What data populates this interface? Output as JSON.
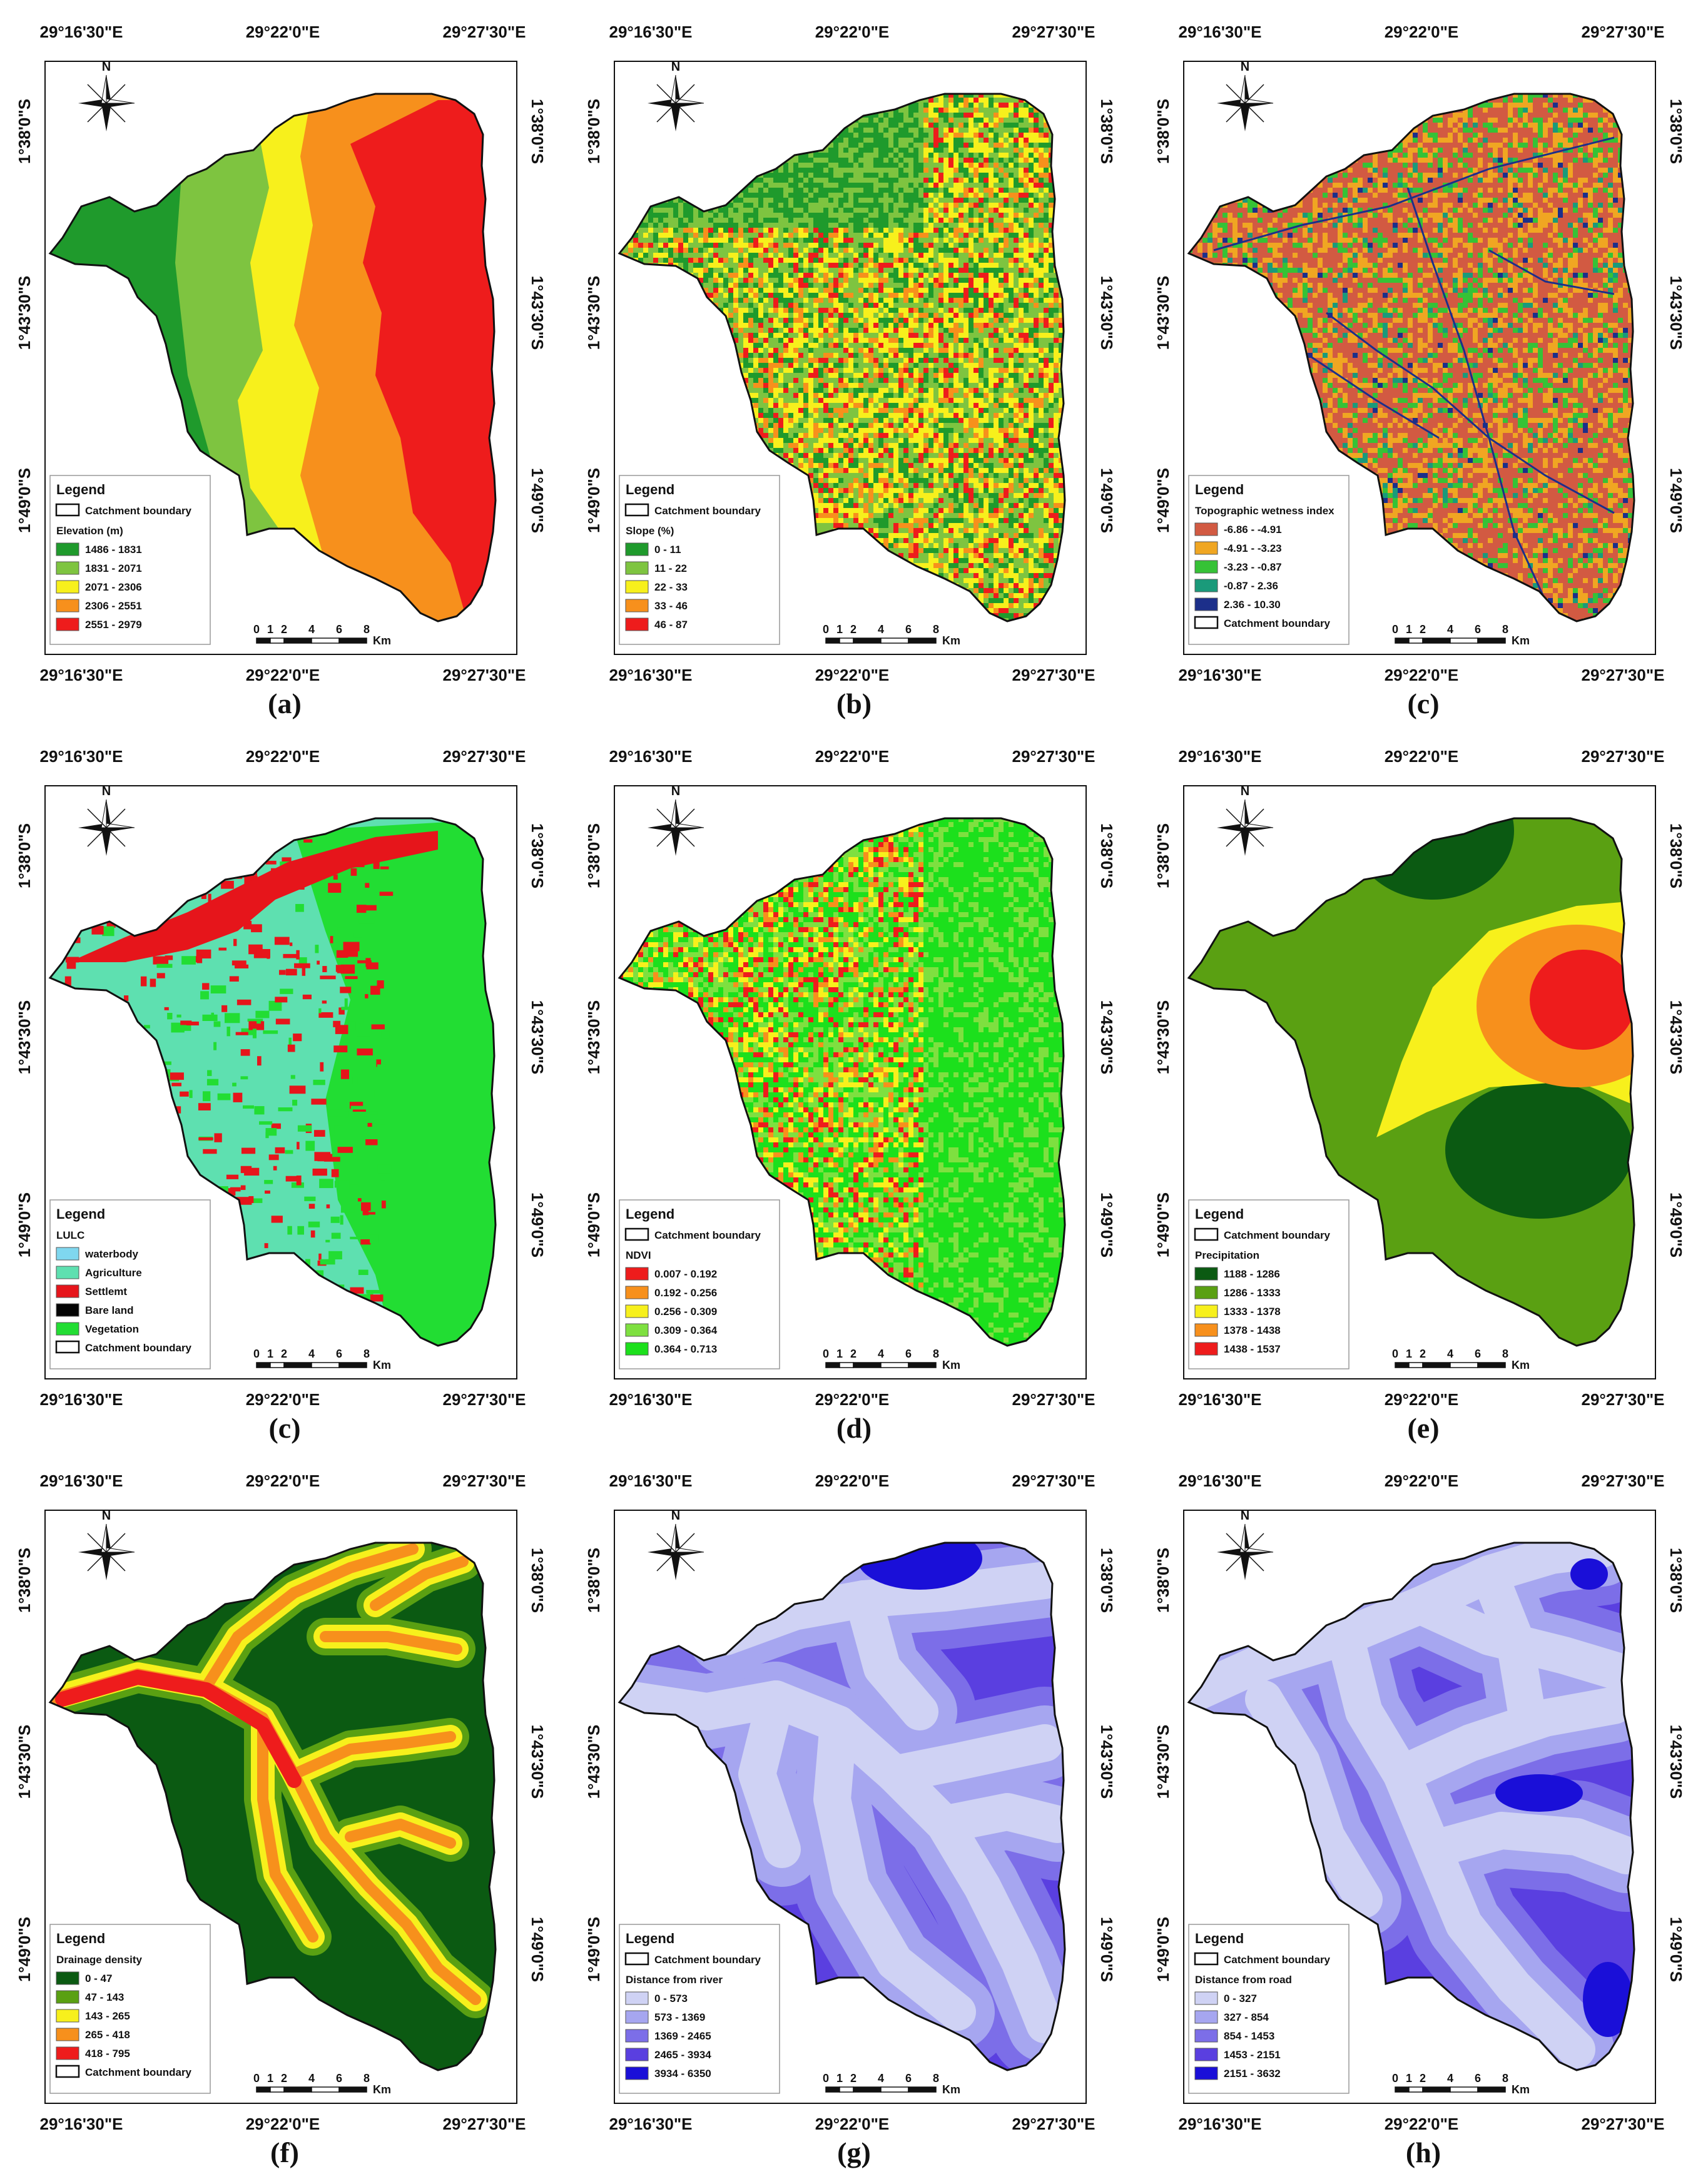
{
  "axis": {
    "top": [
      "29°16'30\"E",
      "29°22'0\"E",
      "29°27'30\"E"
    ],
    "bottom": [
      "29°16'30\"E",
      "29°22'0\"E",
      "29°27'30\"E"
    ],
    "left": [
      "1°38'0\"S",
      "1°43'30\"S",
      "1°49'0\"S"
    ],
    "right": [
      "1°38'0\"S",
      "1°43'30\"S",
      "1°49'0\"S"
    ]
  },
  "north_label": "N",
  "scale_bar": {
    "ticks": [
      "0",
      "1",
      "2",
      "4",
      "6",
      "8"
    ],
    "unit": "Km"
  },
  "panels": [
    {
      "label": "(a)",
      "style": "elevation",
      "legend": {
        "title": "Legend",
        "boundary_label": "Catchment boundary",
        "boundary_position": "top",
        "subtitle": "Elevation (m)",
        "classes": [
          {
            "label": "1486 - 1831",
            "color": "#1f9a2c"
          },
          {
            "label": "1831 - 2071",
            "color": "#7ec440"
          },
          {
            "label": "2071 - 2306",
            "color": "#f7f01c"
          },
          {
            "label": "2306 - 2551",
            "color": "#f7901c"
          },
          {
            "label": "2551 - 2979",
            "color": "#ee1c1c"
          }
        ]
      }
    },
    {
      "label": "(b)",
      "style": "speckle",
      "legend": {
        "title": "Legend",
        "boundary_label": "Catchment boundary",
        "boundary_position": "top",
        "subtitle": "Slope (%)",
        "classes": [
          {
            "label": "0 - 11",
            "color": "#1f9a2c"
          },
          {
            "label": "11 - 22",
            "color": "#7ec440"
          },
          {
            "label": "22 - 33",
            "color": "#f7f01c"
          },
          {
            "label": "33 - 46",
            "color": "#f7901c"
          },
          {
            "label": "46 - 87",
            "color": "#ee1c1c"
          }
        ]
      }
    },
    {
      "label": "(c)",
      "style": "speckle",
      "legend": {
        "title": "Legend",
        "boundary_label": "Catchment boundary",
        "boundary_position": "bottom",
        "subtitle": "Topographic wetness index",
        "classes": [
          {
            "label": "-6.86 - -4.91",
            "color": "#d25a42"
          },
          {
            "label": "-4.91 - -3.23",
            "color": "#f0a622"
          },
          {
            "label": "-3.23 - -0.87",
            "color": "#36c236"
          },
          {
            "label": "-0.87 - 2.36",
            "color": "#1a9a7a"
          },
          {
            "label": "2.36 - 10.30",
            "color": "#1c2f8a"
          }
        ]
      }
    },
    {
      "label": "(c)",
      "style": "lulc",
      "legend": {
        "title": "Legend",
        "boundary_label": "Catchment boundary",
        "boundary_position": "bottom",
        "subtitle": "LULC",
        "classes": [
          {
            "label": "waterbody",
            "color": "#7fd7ef"
          },
          {
            "label": "Agriculture",
            "color": "#5ee0b0"
          },
          {
            "label": "Settlemt",
            "color": "#e6151b"
          },
          {
            "label": "Bare land",
            "color": "#050505"
          },
          {
            "label": "Vegetation",
            "color": "#22dd33"
          }
        ]
      }
    },
    {
      "label": "(d)",
      "style": "speckle",
      "legend": {
        "title": "Legend",
        "boundary_label": "Catchment boundary",
        "boundary_position": "top",
        "subtitle": "NDVI",
        "classes": [
          {
            "label": "0.007 - 0.192",
            "color": "#ee1c1c"
          },
          {
            "label": "0.192 - 0.256",
            "color": "#f7901c"
          },
          {
            "label": "0.256 - 0.309",
            "color": "#f7f01c"
          },
          {
            "label": "0.309 - 0.364",
            "color": "#7ee040"
          },
          {
            "label": "0.364 - 0.713",
            "color": "#1ce01c"
          }
        ]
      }
    },
    {
      "label": "(e)",
      "style": "precip",
      "legend": {
        "title": "Legend",
        "boundary_label": "Catchment boundary",
        "boundary_position": "top",
        "subtitle": "Precipitation",
        "classes": [
          {
            "label": "1188 - 1286",
            "color": "#0b5a12"
          },
          {
            "label": "1286 - 1333",
            "color": "#5aa012"
          },
          {
            "label": "1333 - 1378",
            "color": "#f7f01c"
          },
          {
            "label": "1378 - 1438",
            "color": "#f7901c"
          },
          {
            "label": "1438 - 1537",
            "color": "#ee1c1c"
          }
        ]
      }
    },
    {
      "label": "(f)",
      "style": "drainage",
      "legend": {
        "title": "Legend",
        "boundary_label": "Catchment boundary",
        "boundary_position": "bottom",
        "subtitle": "Drainage density",
        "classes": [
          {
            "label": "0 - 47",
            "color": "#0b5a12"
          },
          {
            "label": "47 - 143",
            "color": "#5aa012"
          },
          {
            "label": "143 - 265",
            "color": "#f7f01c"
          },
          {
            "label": "265 - 418",
            "color": "#f7901c"
          },
          {
            "label": "418 - 795",
            "color": "#ee1c1c"
          }
        ]
      }
    },
    {
      "label": "(g)",
      "style": "river",
      "legend": {
        "title": "Legend",
        "boundary_label": "Catchment boundary",
        "boundary_position": "top",
        "subtitle": "Distance from river",
        "classes": [
          {
            "label": "0 - 573",
            "color": "#cfd2f4"
          },
          {
            "label": "573 - 1369",
            "color": "#a6a6f0"
          },
          {
            "label": "1369 - 2465",
            "color": "#7c6ee8"
          },
          {
            "label": "2465 - 3934",
            "color": "#5a3fe0"
          },
          {
            "label": "3934 - 6350",
            "color": "#1a0fd8"
          }
        ]
      }
    },
    {
      "label": "(h)",
      "style": "road",
      "legend": {
        "title": "Legend",
        "boundary_label": "Catchment boundary",
        "boundary_position": "top",
        "subtitle": "Distance from road",
        "classes": [
          {
            "label": "0 - 327",
            "color": "#cfd2f4"
          },
          {
            "label": "327 - 854",
            "color": "#a6a6f0"
          },
          {
            "label": "854 - 1453",
            "color": "#7c6ee8"
          },
          {
            "label": "1453 - 2151",
            "color": "#5a3fe0"
          },
          {
            "label": "2151 - 3632",
            "color": "#1a0fd8"
          }
        ]
      }
    }
  ]
}
